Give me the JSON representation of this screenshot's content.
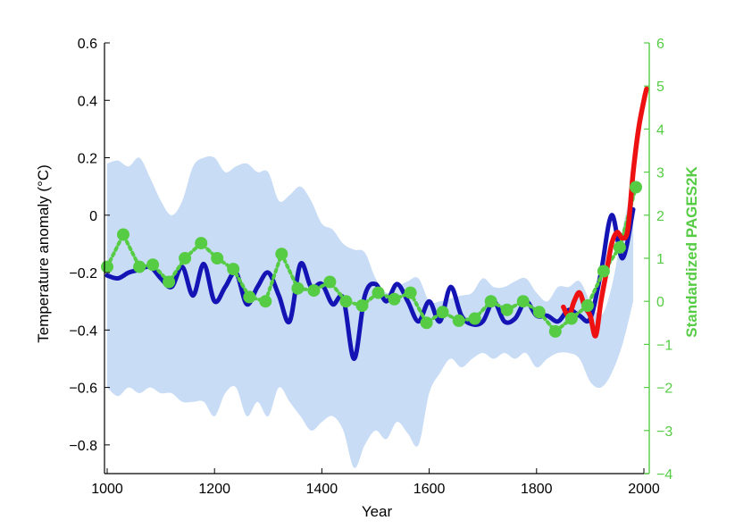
{
  "chart_data": {
    "type": "line",
    "title": "",
    "xlabel": "Year",
    "ylabel": "Temperature anomaly (°C)",
    "ylabel_right": "Standardized PAGES2K",
    "xlim": [
      995,
      2010
    ],
    "ylim": [
      -0.9,
      0.6
    ],
    "ylim_right": [
      -4,
      6
    ],
    "x_ticks": [
      1000,
      1200,
      1400,
      1600,
      1800,
      2000
    ],
    "y_ticks": [
      -0.8,
      -0.6,
      -0.4,
      -0.2,
      0,
      0.2,
      0.4,
      0.6
    ],
    "y_ticks_right": [
      -4,
      -3,
      -2,
      -1,
      0,
      1,
      2,
      3,
      4,
      5,
      6
    ],
    "x_tick_labels": [
      "1000",
      "1200",
      "1400",
      "1600",
      "1800",
      "2000"
    ],
    "y_tick_labels": [
      "−0.8",
      "−0.6",
      "−0.4",
      "−0.2",
      "0",
      "0.2",
      "0.4",
      "0.6"
    ],
    "y_tick_labels_right": [
      "−4",
      "−3",
      "−2",
      "−1",
      "0",
      "1",
      "2",
      "3",
      "4",
      "5",
      "6"
    ],
    "colors": {
      "reconstruction": "#1414b4",
      "instrumental": "#ee1111",
      "pages2k": "#55cc44",
      "uncertainty": "#c9dcf5",
      "right_axis": "#55cc44",
      "left_axis": "#000000"
    },
    "grid": false,
    "series": [
      {
        "role": "uncertainty_band",
        "x": [
          1000,
          1020,
          1040,
          1060,
          1080,
          1100,
          1120,
          1140,
          1160,
          1180,
          1200,
          1220,
          1240,
          1260,
          1280,
          1300,
          1320,
          1340,
          1360,
          1380,
          1400,
          1420,
          1440,
          1460,
          1480,
          1500,
          1520,
          1540,
          1560,
          1580,
          1600,
          1620,
          1640,
          1660,
          1680,
          1700,
          1720,
          1740,
          1760,
          1780,
          1800,
          1820,
          1840,
          1860,
          1880,
          1900,
          1920,
          1940,
          1960,
          1980
        ],
        "upper": [
          0.18,
          0.19,
          0.17,
          0.2,
          0.13,
          0.05,
          0.0,
          0.05,
          0.17,
          0.2,
          0.2,
          0.15,
          0.17,
          0.18,
          0.15,
          0.15,
          0.05,
          0.07,
          0.1,
          0.05,
          -0.03,
          -0.05,
          -0.1,
          -0.12,
          -0.13,
          -0.22,
          -0.27,
          -0.25,
          -0.23,
          -0.22,
          -0.3,
          -0.3,
          -0.29,
          -0.28,
          -0.27,
          -0.22,
          -0.25,
          -0.25,
          -0.23,
          -0.22,
          -0.27,
          -0.3,
          -0.25,
          -0.25,
          -0.23,
          -0.3,
          -0.35,
          -0.25,
          -0.05,
          0.12
        ],
        "lower": [
          -0.6,
          -0.63,
          -0.6,
          -0.62,
          -0.6,
          -0.62,
          -0.62,
          -0.65,
          -0.65,
          -0.65,
          -0.7,
          -0.62,
          -0.6,
          -0.7,
          -0.65,
          -0.7,
          -0.6,
          -0.65,
          -0.7,
          -0.75,
          -0.72,
          -0.7,
          -0.75,
          -0.88,
          -0.8,
          -0.75,
          -0.78,
          -0.72,
          -0.76,
          -0.8,
          -0.62,
          -0.55,
          -0.5,
          -0.53,
          -0.5,
          -0.48,
          -0.5,
          -0.48,
          -0.5,
          -0.48,
          -0.53,
          -0.5,
          -0.48,
          -0.48,
          -0.5,
          -0.58,
          -0.6,
          -0.55,
          -0.45,
          -0.3
        ]
      },
      {
        "name": "",
        "role": "reconstruction",
        "x": [
          1000,
          1020,
          1040,
          1060,
          1080,
          1100,
          1120,
          1140,
          1160,
          1180,
          1200,
          1220,
          1240,
          1260,
          1280,
          1300,
          1320,
          1340,
          1360,
          1380,
          1400,
          1420,
          1440,
          1460,
          1480,
          1500,
          1520,
          1540,
          1560,
          1580,
          1600,
          1620,
          1640,
          1660,
          1680,
          1700,
          1720,
          1740,
          1760,
          1780,
          1800,
          1820,
          1840,
          1860,
          1880,
          1900,
          1920,
          1940,
          1960,
          1980
        ],
        "values": [
          -0.21,
          -0.22,
          -0.2,
          -0.19,
          -0.18,
          -0.22,
          -0.25,
          -0.18,
          -0.28,
          -0.17,
          -0.3,
          -0.25,
          -0.2,
          -0.31,
          -0.25,
          -0.2,
          -0.28,
          -0.37,
          -0.17,
          -0.25,
          -0.24,
          -0.31,
          -0.29,
          -0.5,
          -0.28,
          -0.24,
          -0.3,
          -0.24,
          -0.3,
          -0.37,
          -0.3,
          -0.37,
          -0.25,
          -0.35,
          -0.38,
          -0.37,
          -0.3,
          -0.37,
          -0.36,
          -0.3,
          -0.35,
          -0.35,
          -0.37,
          -0.33,
          -0.35,
          -0.36,
          -0.2,
          0.0,
          -0.15,
          0.02
        ]
      },
      {
        "name": "",
        "role": "instrumental",
        "x": [
          1850,
          1860,
          1870,
          1880,
          1890,
          1900,
          1910,
          1920,
          1930,
          1940,
          1950,
          1960,
          1970,
          1980,
          1990,
          2000,
          2005
        ],
        "values": [
          -0.32,
          -0.35,
          -0.3,
          -0.27,
          -0.32,
          -0.35,
          -0.42,
          -0.3,
          -0.2,
          -0.1,
          -0.06,
          -0.08,
          -0.05,
          0.15,
          0.3,
          0.4,
          0.44
        ]
      },
      {
        "name": "",
        "role": "pages2k",
        "axis": "right",
        "x": [
          1000,
          1030,
          1060,
          1085,
          1115,
          1145,
          1175,
          1205,
          1235,
          1265,
          1295,
          1325,
          1355,
          1385,
          1415,
          1445,
          1475,
          1505,
          1535,
          1565,
          1595,
          1625,
          1655,
          1685,
          1715,
          1745,
          1775,
          1805,
          1835,
          1865,
          1895,
          1925,
          1955,
          1985
        ],
        "values": [
          0.8,
          1.55,
          0.8,
          0.85,
          0.45,
          1.0,
          1.35,
          1.0,
          0.75,
          0.1,
          0.0,
          1.1,
          0.3,
          0.25,
          0.45,
          0.0,
          -0.1,
          0.2,
          0.05,
          0.2,
          -0.5,
          -0.25,
          -0.45,
          -0.4,
          0.0,
          -0.2,
          0.0,
          -0.25,
          -0.7,
          -0.4,
          -0.1,
          0.7,
          1.25,
          2.65
        ]
      }
    ]
  }
}
